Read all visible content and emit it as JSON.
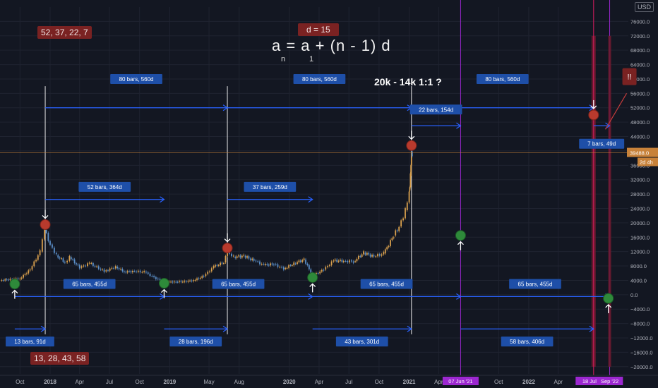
{
  "currency_badge": "USD",
  "top_axis_label": "8(",
  "pill_top_left": "52, 37, 22, 7",
  "pill_bottom_left": "13, 28, 43, 58",
  "pill_d": "d = 15",
  "formula": {
    "text": "a = a + (n - 1) d",
    "sub_n": "n",
    "sub_1": "1"
  },
  "headline": "20k - 14k 1:1 ?",
  "alert_label": "!!",
  "colors": {
    "background": "#131722",
    "grid": "#1f2330",
    "measure_line": "#2962ff",
    "label_box": "#1e4fa8",
    "up_candle": "#d9a04d",
    "down_candle": "#5b8fc9",
    "top_marker": "#b83a2d",
    "bottom_marker": "#2e8a3a",
    "vertical_purple": "#9c27d0",
    "vertical_pink": "#d81b60",
    "price_line": "#c8823a"
  },
  "chart_data": {
    "type": "line",
    "title": "",
    "ylabel": "",
    "ylim": [
      -22000,
      80000
    ],
    "y_ticks": [
      76000,
      72000,
      68000,
      64000,
      60000,
      56000,
      52000,
      48000,
      44000,
      40000,
      36000,
      32000,
      28000,
      24000,
      20000,
      16000,
      12000,
      8000,
      4000,
      0,
      -4000,
      -8000,
      -12000,
      -16000,
      -20000
    ],
    "y_tick_labels": [
      "76000.0",
      "72000.0",
      "68000.0",
      "64000.0",
      "60000.0",
      "56000.0",
      "52000.0",
      "48000.0",
      "44000.0",
      "40000.0",
      "36000.0",
      "32000.0",
      "28000.0",
      "24000.0",
      "20000.0",
      "16000.0",
      "12000.0",
      "8000.0",
      "4000.0",
      "0.0",
      "−4000.0",
      "−8000.0",
      "−12000.0",
      "−16000.0",
      "−20000.0"
    ],
    "x_ticks": [
      {
        "date": "2017-10-01",
        "label": "Oct"
      },
      {
        "date": "2018-01-01",
        "label": "2018"
      },
      {
        "date": "2018-04-01",
        "label": "Apr"
      },
      {
        "date": "2018-07-01",
        "label": "Jul"
      },
      {
        "date": "2018-10-01",
        "label": "Oct"
      },
      {
        "date": "2019-01-01",
        "label": "2019"
      },
      {
        "date": "2019-05-01",
        "label": "May"
      },
      {
        "date": "2019-08-01",
        "label": "Aug"
      },
      {
        "date": "2020-01-01",
        "label": "2020"
      },
      {
        "date": "2020-04-01",
        "label": "Apr"
      },
      {
        "date": "2020-07-01",
        "label": "Jul"
      },
      {
        "date": "2020-10-01",
        "label": "Oct"
      },
      {
        "date": "2021-01-01",
        "label": "2021"
      },
      {
        "date": "2021-04-01",
        "label": "Apr"
      },
      {
        "date": "2021-10-01",
        "label": "Oct"
      },
      {
        "date": "2022-01-01",
        "label": "2022"
      },
      {
        "date": "2022-04-01",
        "label": "Apr"
      }
    ],
    "x_highlight_labels": [
      "07 Jun '21",
      "18 Jul '22",
      "Sep '22"
    ],
    "current_price": {
      "value": 39488,
      "label": "39488.0",
      "sublabel": "2d 4h"
    },
    "series": [
      {
        "values": [
          [
            "2017-08-01",
            4000
          ],
          [
            "2017-09-01",
            4300
          ],
          [
            "2017-10-01",
            4500
          ],
          [
            "2017-11-01",
            7000
          ],
          [
            "2017-12-01",
            12000
          ],
          [
            "2017-12-15",
            18000
          ],
          [
            "2018-01-01",
            14000
          ],
          [
            "2018-01-20",
            11000
          ],
          [
            "2018-02-15",
            9000
          ],
          [
            "2018-03-01",
            10500
          ],
          [
            "2018-04-01",
            7500
          ],
          [
            "2018-05-01",
            8800
          ],
          [
            "2018-06-15",
            6500
          ],
          [
            "2018-07-20",
            7800
          ],
          [
            "2018-08-15",
            6400
          ],
          [
            "2018-09-15",
            6500
          ],
          [
            "2018-10-15",
            6400
          ],
          [
            "2018-11-20",
            4500
          ],
          [
            "2018-12-15",
            3500
          ],
          [
            "2019-01-15",
            3600
          ],
          [
            "2019-02-15",
            3700
          ],
          [
            "2019-03-15",
            4000
          ],
          [
            "2019-04-15",
            5200
          ],
          [
            "2019-05-15",
            7800
          ],
          [
            "2019-06-15",
            9000
          ],
          [
            "2019-06-26",
            12000
          ],
          [
            "2019-07-15",
            10500
          ],
          [
            "2019-08-15",
            10800
          ],
          [
            "2019-09-15",
            9500
          ],
          [
            "2019-10-15",
            8300
          ],
          [
            "2019-11-15",
            8500
          ],
          [
            "2019-12-15",
            7200
          ],
          [
            "2020-01-15",
            8700
          ],
          [
            "2020-02-15",
            9800
          ],
          [
            "2020-03-12",
            5300
          ],
          [
            "2020-04-15",
            7000
          ],
          [
            "2020-05-15",
            9500
          ],
          [
            "2020-06-15",
            9400
          ],
          [
            "2020-07-15",
            9200
          ],
          [
            "2020-08-15",
            11700
          ],
          [
            "2020-09-15",
            10600
          ],
          [
            "2020-10-15",
            11500
          ],
          [
            "2020-11-15",
            16500
          ],
          [
            "2020-12-01",
            19000
          ],
          [
            "2020-12-20",
            23500
          ],
          [
            "2021-01-01",
            29000
          ],
          [
            "2021-01-05",
            33000
          ],
          [
            "2021-01-08",
            40000
          ],
          [
            "2021-01-10",
            38000
          ]
        ]
      }
    ],
    "tops": [
      {
        "date": "2017-12-17",
        "value": 19500
      },
      {
        "date": "2019-06-26",
        "value": 13000
      },
      {
        "date": "2021-01-08",
        "value": 41500
      },
      {
        "date": "2022-07-18",
        "value": 50000
      }
    ],
    "bottoms": [
      {
        "date": "2017-09-15",
        "value": 3000
      },
      {
        "date": "2018-12-15",
        "value": 3200
      },
      {
        "date": "2020-03-12",
        "value": 4800
      },
      {
        "date": "2021-06-07",
        "value": 16500
      },
      {
        "date": "2022-09-01",
        "value": -1000
      }
    ],
    "measurements": [
      {
        "label": "80 bars, 560d",
        "start": "2017-12-17",
        "end": "2019-06-26",
        "y": 52000,
        "label_y": 60000
      },
      {
        "label": "80 bars, 560d",
        "start": "2019-06-26",
        "end": "2021-01-08",
        "y": 52000,
        "label_y": 60000
      },
      {
        "label": "80 bars, 560d",
        "start": "2021-01-08",
        "end": "2022-07-18",
        "y": 52000,
        "label_y": 60000
      },
      {
        "label": "22 bars, 154d",
        "start": "2021-01-08",
        "end": "2021-06-07",
        "y": 47000,
        "label_y": 51500
      },
      {
        "label": "7 bars, 49d",
        "start": "2022-07-18",
        "end": "2022-09-05",
        "y": 47000,
        "label_y": 42000
      },
      {
        "label": "52 bars, 364d",
        "start": "2017-12-17",
        "end": "2018-12-15",
        "y": 26500,
        "label_y": 30000
      },
      {
        "label": "37 bars, 259d",
        "start": "2019-06-26",
        "end": "2020-03-12",
        "y": 26500,
        "label_y": 30000
      },
      {
        "label": "65 bars, 455d",
        "start": "2017-09-15",
        "end": "2018-12-15",
        "y": -500,
        "label_y": 3000
      },
      {
        "label": "65 bars, 455d",
        "start": "2018-12-15",
        "end": "2020-03-12",
        "y": -500,
        "label_y": 3000
      },
      {
        "label": "65 bars, 455d",
        "start": "2020-03-12",
        "end": "2021-06-07",
        "y": -500,
        "label_y": 3000
      },
      {
        "label": "65 bars, 455d",
        "start": "2021-06-07",
        "end": "2022-09-05",
        "y": -500,
        "label_y": 3000
      },
      {
        "label": "13 bars, 91d",
        "start": "2017-09-15",
        "end": "2017-12-17",
        "y": -9500,
        "label_y": -13000
      },
      {
        "label": "28 bars, 196d",
        "start": "2018-12-15",
        "end": "2019-06-26",
        "y": -9500,
        "label_y": -13000
      },
      {
        "label": "43 bars, 301d",
        "start": "2020-03-12",
        "end": "2021-01-08",
        "y": -9500,
        "label_y": -13000
      },
      {
        "label": "58 bars, 406d",
        "start": "2021-06-07",
        "end": "2022-07-18",
        "y": -9500,
        "label_y": -13000
      }
    ],
    "verticals": [
      {
        "date": "2017-12-17",
        "color": "white"
      },
      {
        "date": "2019-06-26",
        "color": "white"
      },
      {
        "date": "2021-01-08",
        "color": "white"
      },
      {
        "date": "2021-06-07",
        "color": "purple"
      },
      {
        "date": "2022-07-18",
        "color": "pink"
      },
      {
        "date": "2022-09-05",
        "color": "purple"
      }
    ]
  }
}
